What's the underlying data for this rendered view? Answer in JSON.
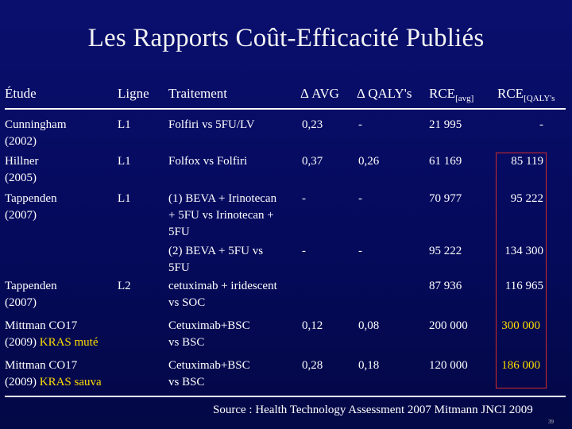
{
  "title": "Les Rapports Coût-Efficacité Publiés",
  "headers": {
    "study": "Étude",
    "line": "Ligne",
    "treatment": "Traitement",
    "avg": "Δ AVG",
    "qaly": "Δ QALY's",
    "rce_avg": "RCE",
    "rce_avg_sub": "[avg]",
    "rce_qaly": "RCE",
    "rce_qaly_sub": "[QALY's"
  },
  "rows": [
    {
      "study1": "Cunningham",
      "study2": "(2002)",
      "line": "L1",
      "treat1": "Folfiri vs 5FU/LV",
      "avg": "0,23",
      "qaly": "-",
      "rce_avg": "21 995",
      "rce_qaly": "-"
    },
    {
      "study1": "Hillner",
      "study2": "(2005)",
      "line": "L1",
      "treat1": "Folfox vs Folfiri",
      "avg": "0,37",
      "qaly": "0,26",
      "rce_avg": "61 169",
      "rce_qaly": "85 119"
    },
    {
      "study1": "Tappenden",
      "study2": "(2007)",
      "line": "L1",
      "treat1": "(1) BEVA + Irinotecan",
      "treat2": "+ 5FU vs Irinotecan +",
      "treat3": "5FU",
      "avg": "-",
      "qaly": "-",
      "rce_avg": "70 977",
      "rce_qaly": "95 222"
    },
    {
      "treat1": "(2) BEVA + 5FU vs",
      "treat2": "5FU",
      "avg": "-",
      "qaly": "-",
      "rce_avg": "95 222",
      "rce_qaly": "134 300"
    },
    {
      "study1": "Tappenden",
      "study2": "(2007)",
      "line": "L2",
      "treat1": "cetuximab + iridescent",
      "treat2": "vs SOC",
      "rce_avg": "87 936",
      "rce_qaly": "116 965"
    },
    {
      "study1": "Mittman CO17",
      "study2": "(2009) ",
      "study2_hl": "KRAS muté",
      "treat1": "Cetuximab+BSC",
      "treat2": "vs BSC",
      "avg": "0,12",
      "qaly": "0,08",
      "rce_avg": "200 000",
      "rce_qaly": "300 000"
    },
    {
      "study1": "Mittman CO17",
      "study2": "(2009) ",
      "study2_hl": "KRAS sauva",
      "treat1": "Cetuximab+BSC",
      "treat2": "vs BSC",
      "avg": "0,28",
      "qaly": "0,18",
      "rce_avg": "120 000",
      "rce_qaly": "186 000"
    }
  ],
  "source": "Source : Health Technology Assessment 2007 Mitmann JNCI 2009",
  "page_number": "39",
  "colors": {
    "background": "#050a5c",
    "highlight": "#ffdd00",
    "box": "#d12a2a"
  }
}
